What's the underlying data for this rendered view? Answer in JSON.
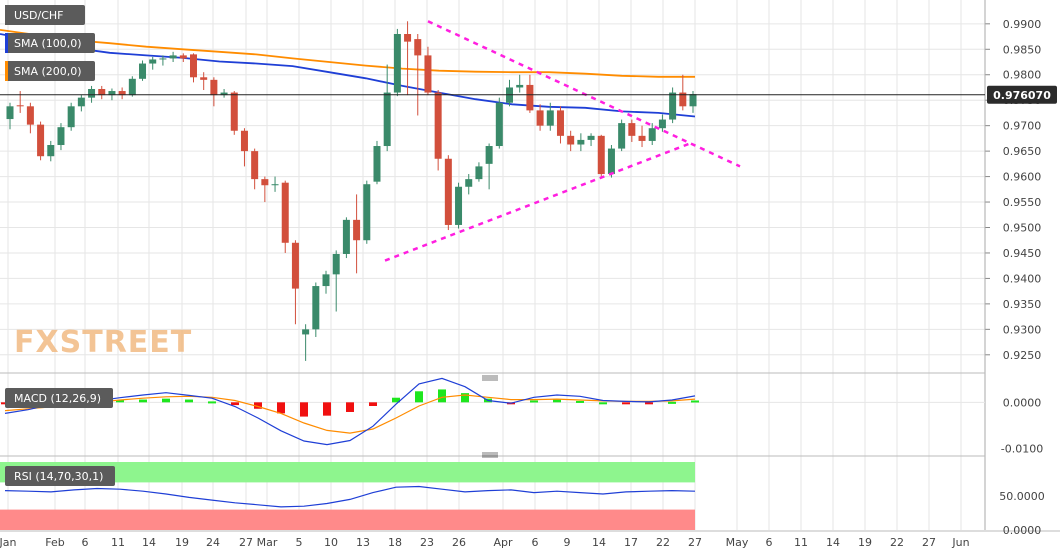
{
  "chart_data": {
    "type": "candlestick",
    "symbol": "USD/CHF",
    "timeframe_note": "daily",
    "watermark": "FXSTREET",
    "last_price_label": "0.976070",
    "price_axis": {
      "ticks": [
        "0.9900",
        "0.9850",
        "0.9800",
        "0.9750",
        "0.9700",
        "0.9650",
        "0.9600",
        "0.9550",
        "0.9500",
        "0.9450",
        "0.9400",
        "0.9350",
        "0.9300",
        "0.9250"
      ],
      "ylim": [
        0.9228,
        0.9935
      ]
    },
    "x_axis": {
      "labels": [
        "Jan",
        "Feb",
        "6",
        "11",
        "14",
        "19",
        "24",
        "27",
        "Mar",
        "5",
        "10",
        "13",
        "18",
        "23",
        "26",
        "Apr",
        "6",
        "9",
        "14",
        "17",
        "22",
        "27",
        "May",
        "6",
        "11",
        "14",
        "19",
        "22",
        "27",
        "Jun"
      ]
    },
    "indicators": {
      "sma100": {
        "label": "SMA (100,0)",
        "color": "#1f3fd6"
      },
      "sma200": {
        "label": "SMA (200,0)",
        "color": "#ff8c00"
      },
      "macd": {
        "label": "MACD (12,26,9)",
        "ticks": [
          "0.0000",
          "-0.0100"
        ]
      },
      "rsi": {
        "label": "RSI (14,70,30,1)",
        "ticks": [
          "50.0000",
          "0.0000"
        ]
      }
    },
    "candles": [
      [
        0.9713,
        0.9738,
        0.9693,
        0.9745
      ],
      [
        0.974,
        0.9738,
        0.9725,
        0.9768
      ],
      [
        0.9738,
        0.9702,
        0.9685,
        0.9745
      ],
      [
        0.9702,
        0.964,
        0.9632,
        0.9708
      ],
      [
        0.964,
        0.9662,
        0.963,
        0.967
      ],
      [
        0.9662,
        0.9697,
        0.9652,
        0.9705
      ],
      [
        0.9697,
        0.9738,
        0.969,
        0.9745
      ],
      [
        0.9738,
        0.9755,
        0.9728,
        0.976
      ],
      [
        0.9755,
        0.9772,
        0.9745,
        0.9778
      ],
      [
        0.9772,
        0.976,
        0.9752,
        0.9778
      ],
      [
        0.976,
        0.9768,
        0.975,
        0.9773
      ],
      [
        0.9768,
        0.976,
        0.9752,
        0.9775
      ],
      [
        0.976,
        0.9792,
        0.9757,
        0.9797
      ],
      [
        0.9792,
        0.9822,
        0.9788,
        0.9828
      ],
      [
        0.9822,
        0.983,
        0.981,
        0.9835
      ],
      [
        0.983,
        0.9832,
        0.9818,
        0.9838
      ],
      [
        0.9832,
        0.9838,
        0.9825,
        0.9845
      ],
      [
        0.9838,
        0.9832,
        0.9825,
        0.9842
      ],
      [
        0.984,
        0.9795,
        0.9785,
        0.9842
      ],
      [
        0.9795,
        0.979,
        0.977,
        0.9805
      ],
      [
        0.979,
        0.976,
        0.9738,
        0.9795
      ],
      [
        0.976,
        0.9765,
        0.9755,
        0.9772
      ],
      [
        0.9765,
        0.969,
        0.9682,
        0.9768
      ],
      [
        0.969,
        0.965,
        0.962,
        0.9695
      ],
      [
        0.965,
        0.9595,
        0.9575,
        0.9655
      ],
      [
        0.9595,
        0.9583,
        0.955,
        0.96
      ],
      [
        0.9583,
        0.9585,
        0.957,
        0.96
      ],
      [
        0.9588,
        0.947,
        0.945,
        0.9592
      ],
      [
        0.947,
        0.938,
        0.931,
        0.9475
      ],
      [
        0.929,
        0.93,
        0.9238,
        0.931
      ],
      [
        0.93,
        0.9385,
        0.9285,
        0.9392
      ],
      [
        0.9385,
        0.9408,
        0.937,
        0.9415
      ],
      [
        0.9408,
        0.9448,
        0.9335,
        0.9455
      ],
      [
        0.9448,
        0.9515,
        0.944,
        0.952
      ],
      [
        0.9515,
        0.9475,
        0.941,
        0.9565
      ],
      [
        0.9475,
        0.9585,
        0.9468,
        0.9592
      ],
      [
        0.959,
        0.966,
        0.9585,
        0.967
      ],
      [
        0.966,
        0.9765,
        0.965,
        0.982
      ],
      [
        0.9765,
        0.988,
        0.9758,
        0.989
      ],
      [
        0.988,
        0.9865,
        0.976,
        0.9905
      ],
      [
        0.987,
        0.9838,
        0.972,
        0.988
      ],
      [
        0.9838,
        0.9765,
        0.976,
        0.9855
      ],
      [
        0.9765,
        0.9635,
        0.9612,
        0.977
      ],
      [
        0.9635,
        0.9505,
        0.9495,
        0.9642
      ],
      [
        0.9505,
        0.958,
        0.9498,
        0.9588
      ],
      [
        0.958,
        0.9595,
        0.9565,
        0.9605
      ],
      [
        0.9595,
        0.962,
        0.959,
        0.9628
      ],
      [
        0.9625,
        0.966,
        0.9575,
        0.9665
      ],
      [
        0.966,
        0.9745,
        0.9655,
        0.9755
      ],
      [
        0.9745,
        0.9775,
        0.9738,
        0.979
      ],
      [
        0.9775,
        0.978,
        0.9765,
        0.98
      ],
      [
        0.978,
        0.973,
        0.9725,
        0.98
      ],
      [
        0.973,
        0.97,
        0.969,
        0.9742
      ],
      [
        0.97,
        0.973,
        0.969,
        0.9745
      ],
      [
        0.973,
        0.968,
        0.9665,
        0.9738
      ],
      [
        0.968,
        0.9663,
        0.965,
        0.969
      ],
      [
        0.9663,
        0.9672,
        0.965,
        0.9685
      ],
      [
        0.9672,
        0.968,
        0.966,
        0.9685
      ],
      [
        0.968,
        0.9605,
        0.9598,
        0.9682
      ],
      [
        0.9605,
        0.9655,
        0.9598,
        0.9662
      ],
      [
        0.9655,
        0.9705,
        0.965,
        0.9712
      ],
      [
        0.9705,
        0.968,
        0.9668,
        0.9712
      ],
      [
        0.968,
        0.967,
        0.9658,
        0.97
      ],
      [
        0.967,
        0.9695,
        0.9662,
        0.9705
      ],
      [
        0.9695,
        0.9712,
        0.9688,
        0.9722
      ],
      [
        0.9712,
        0.9765,
        0.9705,
        0.9775
      ],
      [
        0.9765,
        0.9738,
        0.973,
        0.98
      ],
      [
        0.9738,
        0.9762,
        0.9725,
        0.9768
      ]
    ],
    "sma100": [
      0.988,
      0.9867,
      0.9853,
      0.9843,
      0.9838,
      0.9833,
      0.9826,
      0.9822,
      0.9817,
      0.9805,
      0.9793,
      0.9778,
      0.9765,
      0.9752,
      0.9742,
      0.9737,
      0.9735,
      0.9728,
      0.9725,
      0.9718
    ],
    "sma200": [
      0.9888,
      0.9878,
      0.9868,
      0.9862,
      0.9855,
      0.985,
      0.9845,
      0.984,
      0.9832,
      0.9825,
      0.9818,
      0.9812,
      0.9808,
      0.9806,
      0.9805,
      0.9805,
      0.9802,
      0.9798,
      0.9796,
      0.9796
    ],
    "trendline_upper": [
      [
        0.9905,
        0.962
      ]
    ],
    "trendline_lower": [
      [
        0.9435,
        0.9665
      ]
    ],
    "macd": {
      "macd_line": [
        -0.0024,
        -0.0016,
        -0.0005,
        0.0001,
        0.0003,
        0.001,
        0.0016,
        0.0021,
        0.0015,
        0.0009,
        -0.0009,
        -0.0034,
        -0.0062,
        -0.0084,
        -0.0092,
        -0.0083,
        -0.0052,
        -0.0004,
        0.004,
        0.0052,
        0.0034,
        0.0004,
        -0.0002,
        0.0011,
        0.0016,
        0.0013,
        0.0004,
        0.0002,
        0.0001,
        0.0005,
        0.0014
      ],
      "signal_line": [
        -0.0018,
        -0.0014,
        -0.001,
        -0.0005,
        0.0,
        0.0005,
        0.0009,
        0.0012,
        0.0013,
        0.0011,
        0.0004,
        -0.0009,
        -0.0024,
        -0.0045,
        -0.0061,
        -0.0067,
        -0.0058,
        -0.0034,
        -0.0008,
        0.0011,
        0.0016,
        0.0011,
        0.0006,
        0.0006,
        0.0007,
        0.0005,
        0.0003,
        0.0002,
        0.0002,
        0.0003,
        0.0007
      ],
      "histogram": [
        -0.0004,
        -0.0002,
        0.0003,
        0.0006,
        0.0005,
        0.0005,
        0.0006,
        0.0008,
        0.0006,
        0.0002,
        -0.0006,
        -0.0014,
        -0.0024,
        -0.0031,
        -0.0029,
        -0.0021,
        -0.0008,
        0.001,
        0.0024,
        0.0028,
        0.002,
        0.0008,
        -0.0002,
        0.0004,
        0.0006,
        0.0003,
        0.0,
        -0.0002,
        -0.0001,
        0.0001,
        0.0004
      ]
    },
    "rsi": [
      58,
      57,
      56,
      59,
      61,
      60,
      57,
      53,
      48,
      44,
      40,
      37,
      34,
      35,
      39,
      45,
      55,
      63,
      64,
      60,
      56,
      58,
      59,
      55,
      57,
      55,
      53,
      56,
      57,
      58,
      57
    ]
  }
}
